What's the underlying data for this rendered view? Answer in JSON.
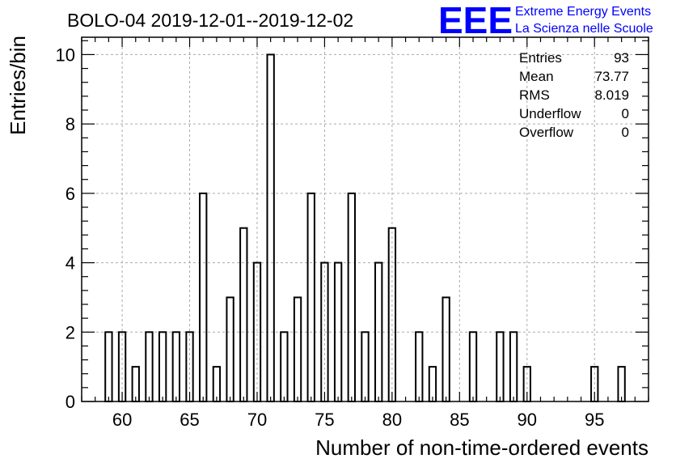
{
  "header": {
    "title": "BOLO-04 2019-12-01--2019-12-02",
    "logo_mark": "EEE",
    "logo_line1": "Extreme Energy Events",
    "logo_line2": "La Scienza nelle Scuole",
    "logo_color": "#0000ff"
  },
  "stats": {
    "entries_label": "Entries",
    "entries_value": "93",
    "mean_label": "Mean",
    "mean_value": "73.77",
    "rms_label": "RMS",
    "rms_value": "8.019",
    "underflow_label": "Underflow",
    "underflow_value": "0",
    "overflow_label": "Overflow",
    "overflow_value": "0"
  },
  "chart_data": {
    "type": "bar",
    "xlabel": "Number of non-time-ordered events",
    "ylabel": "Entries/bin",
    "xlim": [
      57,
      99
    ],
    "ylim": [
      0,
      10.5
    ],
    "grid": true,
    "x_ticks": [
      60,
      65,
      70,
      75,
      80,
      85,
      90,
      95
    ],
    "y_ticks": [
      0,
      2,
      4,
      6,
      8,
      10
    ],
    "x": [
      59,
      60,
      61,
      62,
      63,
      64,
      65,
      66,
      67,
      68,
      69,
      70,
      71,
      72,
      73,
      74,
      75,
      76,
      77,
      78,
      79,
      80,
      82,
      83,
      84,
      86,
      88,
      89,
      90,
      95,
      97
    ],
    "values": [
      2,
      2,
      1,
      2,
      2,
      2,
      2,
      6,
      1,
      3,
      5,
      4,
      10,
      2,
      3,
      6,
      4,
      4,
      6,
      2,
      4,
      5,
      2,
      1,
      3,
      2,
      2,
      2,
      1,
      1,
      1
    ]
  }
}
